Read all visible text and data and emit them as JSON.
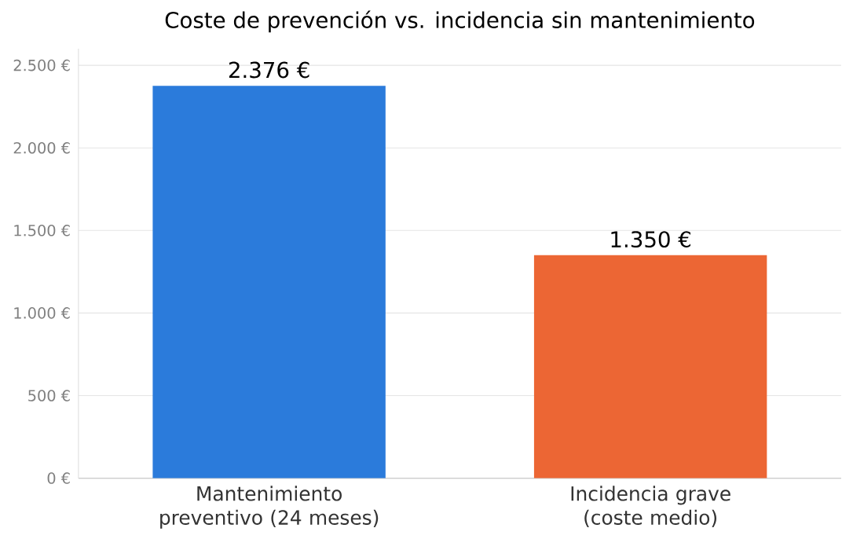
{
  "chart_data": {
    "type": "bar",
    "title": "Coste de prevención vs. incidencia sin mantenimiento",
    "categories": [
      "Mantenimiento preventivo (24 meses)",
      "Incidencia grave (coste medio)"
    ],
    "values": [
      2376,
      1350
    ],
    "colors": [
      "#2b7bdb",
      "#ec6634"
    ],
    "value_labels": [
      "2.376 €",
      "1.350 €"
    ],
    "ylim": [
      0,
      2600
    ],
    "yticks": [
      {
        "value": 0,
        "label": "0 €"
      },
      {
        "value": 500,
        "label": "500 €"
      },
      {
        "value": 1000,
        "label": "1.000 €"
      },
      {
        "value": 1500,
        "label": "1.500 €"
      },
      {
        "value": 2000,
        "label": "2.000 €"
      },
      {
        "value": 2500,
        "label": "2.500 €"
      }
    ],
    "grid": "y"
  }
}
